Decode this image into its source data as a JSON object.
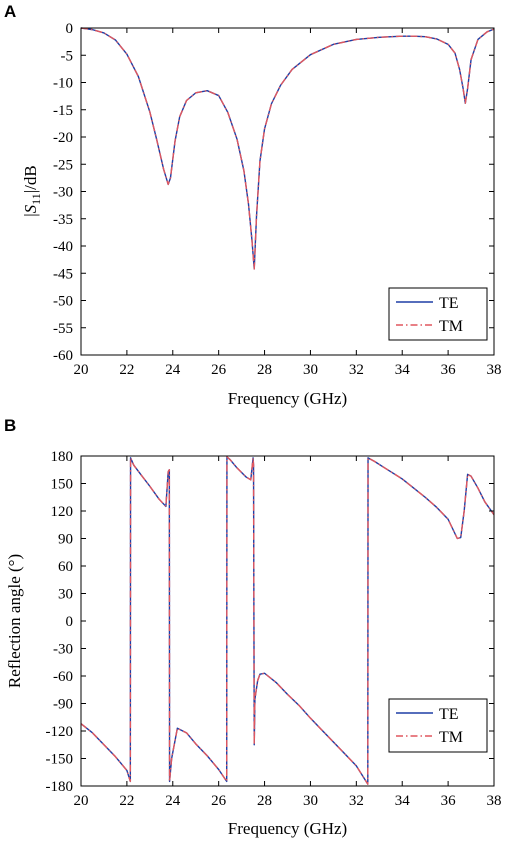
{
  "chart_data": [
    {
      "panel": "A",
      "type": "line",
      "xlabel": "Frequency (GHz)",
      "ylabel": "|S11|/dB",
      "xlim": [
        20,
        38
      ],
      "ylim": [
        -60,
        0
      ],
      "xticks": [
        20,
        22,
        24,
        26,
        28,
        30,
        32,
        34,
        36,
        38
      ],
      "yticks": [
        0,
        -5,
        -10,
        -15,
        -20,
        -25,
        -30,
        -35,
        -40,
        -45,
        -50,
        -55,
        -60
      ],
      "grid": false,
      "legend_position": "bottom-right",
      "series": [
        {
          "name": "TE",
          "color": "#1f3fa6",
          "style": "solid",
          "x": [
            20,
            20.5,
            21,
            21.5,
            22,
            22.5,
            23,
            23.3,
            23.6,
            23.8,
            23.9,
            24.1,
            24.3,
            24.6,
            25,
            25.5,
            26,
            26.4,
            26.8,
            27.1,
            27.3,
            27.45,
            27.55,
            27.65,
            27.8,
            28,
            28.3,
            28.7,
            29.2,
            30,
            31,
            32,
            33,
            34,
            34.5,
            35,
            35.5,
            36,
            36.3,
            36.5,
            36.65,
            36.75,
            36.85,
            37,
            37.3,
            37.7,
            38
          ],
          "y": [
            0,
            -0.3,
            -0.9,
            -2.2,
            -4.8,
            -8.9,
            -15.4,
            -20.5,
            -25.9,
            -28.7,
            -27.5,
            -20.7,
            -16.3,
            -13.3,
            -11.9,
            -11.5,
            -12.4,
            -15.5,
            -20.4,
            -26.2,
            -32.3,
            -38.9,
            -44.2,
            -34.5,
            -24.4,
            -18.5,
            -13.9,
            -10.5,
            -7.6,
            -4.9,
            -3,
            -2.1,
            -1.7,
            -1.5,
            -1.5,
            -1.6,
            -2,
            -3,
            -4.6,
            -7.6,
            -11,
            -13.8,
            -11.1,
            -5.8,
            -2.1,
            -0.7,
            -0.2
          ]
        },
        {
          "name": "TM",
          "color": "#e0575e",
          "style": "dash-dot",
          "x": [
            20,
            20.5,
            21,
            21.5,
            22,
            22.5,
            23,
            23.3,
            23.6,
            23.8,
            23.9,
            24.1,
            24.3,
            24.6,
            25,
            25.5,
            26,
            26.4,
            26.8,
            27.1,
            27.3,
            27.45,
            27.55,
            27.65,
            27.8,
            28,
            28.3,
            28.7,
            29.2,
            30,
            31,
            32,
            33,
            34,
            34.5,
            35,
            35.5,
            36,
            36.3,
            36.5,
            36.65,
            36.75,
            36.85,
            37,
            37.3,
            37.7,
            38
          ],
          "y": [
            0,
            -0.3,
            -0.9,
            -2.2,
            -4.8,
            -8.9,
            -15.4,
            -20.5,
            -25.9,
            -28.7,
            -27.5,
            -20.7,
            -16.3,
            -13.3,
            -11.9,
            -11.5,
            -12.4,
            -15.5,
            -20.4,
            -26.2,
            -32.3,
            -38.9,
            -44.2,
            -34.5,
            -24.4,
            -18.5,
            -13.9,
            -10.5,
            -7.6,
            -4.9,
            -3,
            -2.1,
            -1.7,
            -1.5,
            -1.5,
            -1.6,
            -2,
            -3,
            -4.6,
            -7.6,
            -11,
            -13.8,
            -11.1,
            -5.8,
            -2.1,
            -0.7,
            -0.2
          ]
        }
      ]
    },
    {
      "panel": "B",
      "type": "line",
      "xlabel": "Frequency (GHz)",
      "ylabel": "Reflection angle (°)",
      "xlim": [
        20,
        38
      ],
      "ylim": [
        -180,
        180
      ],
      "xticks": [
        20,
        22,
        24,
        26,
        28,
        30,
        32,
        34,
        36,
        38
      ],
      "yticks": [
        180,
        150,
        120,
        90,
        60,
        30,
        0,
        -30,
        -60,
        -90,
        -120,
        -150,
        -180
      ],
      "grid": false,
      "legend_position": "bottom-right",
      "series": [
        {
          "name": "TE",
          "color": "#1f3fa6",
          "style": "solid",
          "x": [
            20,
            20.5,
            21,
            21.5,
            22,
            22.15,
            22.16,
            22.3,
            22.6,
            23,
            23.4,
            23.7,
            23.8,
            23.85,
            23.86,
            23.95,
            24.2,
            24.6,
            25,
            25.5,
            26,
            26.35,
            26.36,
            26.5,
            26.8,
            27.2,
            27.4,
            27.5,
            27.52,
            27.55,
            27.58,
            27.7,
            27.8,
            28,
            28.5,
            29,
            29.5,
            30,
            30.5,
            31,
            31.5,
            32,
            32.5,
            32.51,
            32.8,
            33.3,
            34,
            34.5,
            35,
            35.5,
            36,
            36.4,
            36.55,
            36.7,
            36.85,
            37,
            37.3,
            37.6,
            38
          ],
          "y": [
            -112,
            -122,
            -135,
            -148,
            -163,
            -175,
            178,
            170,
            160,
            147,
            133,
            125,
            163,
            165,
            -175,
            -150,
            -117,
            -122,
            -134,
            -147,
            -162,
            -175,
            179,
            176,
            167,
            157,
            154,
            178,
            170,
            -135,
            -85,
            -65,
            -58,
            -57,
            -67,
            -80,
            -92,
            -106,
            -119,
            -132,
            -145,
            -158,
            -178,
            178,
            174,
            166,
            155,
            145,
            135,
            124,
            111,
            90,
            91,
            120,
            160,
            158,
            145,
            130,
            116
          ]
        },
        {
          "name": "TM",
          "color": "#e0575e",
          "style": "dash-dot",
          "x": [
            20,
            20.5,
            21,
            21.5,
            22,
            22.15,
            22.16,
            22.3,
            22.6,
            23,
            23.4,
            23.7,
            23.8,
            23.85,
            23.86,
            23.95,
            24.2,
            24.6,
            25,
            25.5,
            26,
            26.35,
            26.36,
            26.5,
            26.8,
            27.2,
            27.4,
            27.5,
            27.52,
            27.55,
            27.58,
            27.7,
            27.8,
            28,
            28.5,
            29,
            29.5,
            30,
            30.5,
            31,
            31.5,
            32,
            32.5,
            32.51,
            32.8,
            33.3,
            34,
            34.5,
            35,
            35.5,
            36,
            36.4,
            36.55,
            36.7,
            36.85,
            37,
            37.3,
            37.6,
            38
          ],
          "y": [
            -112,
            -122,
            -135,
            -148,
            -163,
            -175,
            178,
            170,
            160,
            147,
            133,
            125,
            163,
            165,
            -175,
            -150,
            -117,
            -122,
            -134,
            -147,
            -162,
            -175,
            179,
            176,
            167,
            157,
            154,
            178,
            170,
            -135,
            -85,
            -65,
            -58,
            -57,
            -67,
            -80,
            -92,
            -106,
            -119,
            -132,
            -145,
            -158,
            -178,
            178,
            174,
            166,
            155,
            145,
            135,
            124,
            111,
            90,
            91,
            120,
            160,
            158,
            145,
            130,
            116
          ]
        }
      ]
    }
  ]
}
